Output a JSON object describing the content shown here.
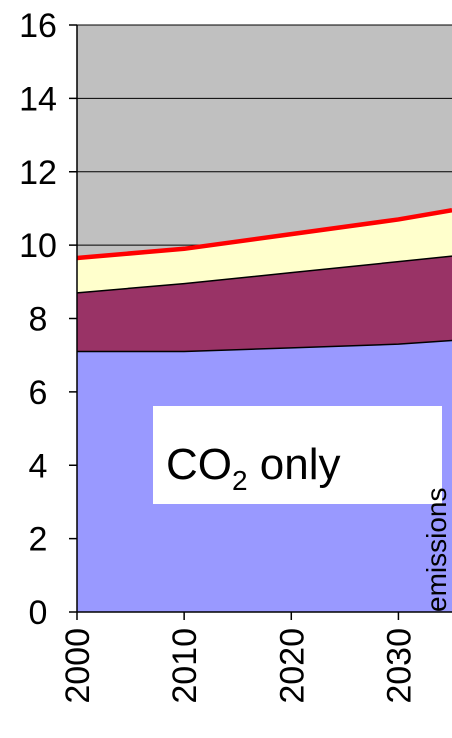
{
  "chart_data": {
    "type": "area",
    "x": [
      2000,
      2010,
      2020,
      2030,
      2035
    ],
    "xticks": [
      "2000",
      "2010",
      "2020",
      "2030"
    ],
    "xlim": [
      2000,
      2035
    ],
    "ylim": [
      0,
      16
    ],
    "yticks": [
      "0",
      "2",
      "4",
      "6",
      "8",
      "10",
      "12",
      "14",
      "16"
    ],
    "grid": true,
    "series": [
      {
        "color": "#9999ff",
        "values": [
          7.1,
          7.1,
          7.2,
          7.3,
          7.4
        ]
      },
      {
        "color": "#993366",
        "values": [
          1.6,
          1.85,
          2.05,
          2.25,
          2.3
        ]
      },
      {
        "color": "#ffffcc",
        "values": [
          0.95,
          0.95,
          1.05,
          1.15,
          1.25
        ]
      }
    ],
    "line": {
      "color": "#ff0000",
      "values": [
        9.65,
        9.9,
        10.3,
        10.7,
        10.95
      ]
    },
    "background_color": "#c0c0c0",
    "annotation": {
      "prefix": "CO",
      "subscript": "2",
      "suffix": " only"
    },
    "ylabel": "emissions"
  }
}
